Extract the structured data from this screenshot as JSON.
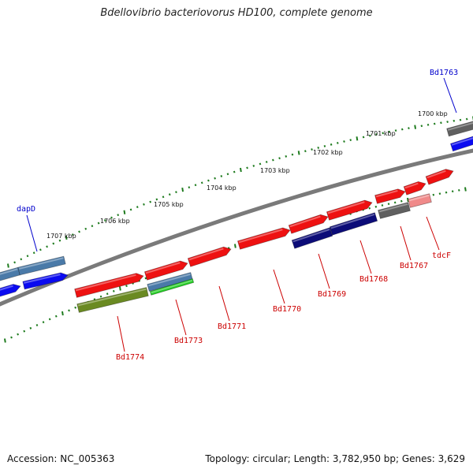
{
  "title": "Bdellovibrio bacteriovorus HD100, complete genome",
  "footer": {
    "accession": "Accession: NC_005363",
    "summary": "Topology: circular; Length: 3,782,950 bp; Genes: 3,629"
  },
  "scale_labels": [
    "1700 kbp",
    "1701 kbp",
    "1702 kbp",
    "1703 kbp",
    "1704 kbp",
    "1705 kbp",
    "1706 kbp",
    "1707 kbp"
  ],
  "gene_labels": [
    {
      "name": "Bd1763",
      "color": "#0000cc"
    },
    {
      "name": "dapD",
      "color": "#0000cc"
    },
    {
      "name": "Bd1774",
      "color": "#cc0000"
    },
    {
      "name": "Bd1773",
      "color": "#cc0000"
    },
    {
      "name": "Bd1771",
      "color": "#cc0000"
    },
    {
      "name": "Bd1770",
      "color": "#cc0000"
    },
    {
      "name": "Bd1769",
      "color": "#cc0000"
    },
    {
      "name": "Bd1768",
      "color": "#cc0000"
    },
    {
      "name": "Bd1767",
      "color": "#cc0000"
    },
    {
      "name": "tdcF",
      "color": "#cc0000"
    }
  ],
  "colors": {
    "backbone": "#7a7a7a",
    "tick": "#1e7b1e",
    "red": "#ee1111",
    "blue": "#0a0af0",
    "navy": "#0c0c78",
    "steel": "#4a7aa8",
    "gray": "#606060",
    "olive": "#6a8a22",
    "green": "#22cc22",
    "pink": "#f08a8a"
  }
}
